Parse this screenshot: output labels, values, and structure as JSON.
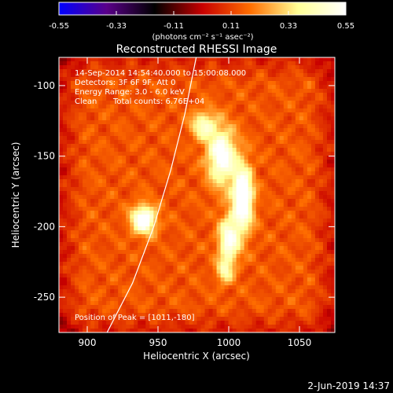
{
  "chart_data": {
    "type": "heatmap",
    "title": "Reconstructed RHESSI Image",
    "xlabel": "Heliocentric X (arcsec)",
    "ylabel": "Heliocentric Y (arcsec)",
    "xlim": [
      880,
      1075
    ],
    "ylim": [
      -275,
      -80
    ],
    "x_ticks": [
      900,
      950,
      1000,
      1050
    ],
    "y_ticks": [
      -250,
      -200,
      -150,
      -100
    ],
    "colorbar": {
      "label": "(photons cm⁻² s⁻¹ asec⁻²)",
      "range": [
        -0.55,
        0.55
      ],
      "ticks": [
        -0.55,
        -0.33,
        -0.11,
        0.11,
        0.33,
        0.55
      ],
      "colormap": [
        "#0000ff",
        "#5a0089",
        "#000000",
        "#c80000",
        "#ff6e00",
        "#ffff96",
        "#ffffff"
      ]
    },
    "annotations": [
      "14-Sep-2014 14:54:40.000 to 15:00:08.000",
      "Detectors: 3F 6F 9F, Att 0",
      "Energy Range: 3.0 - 6.0 keV",
      "Clean",
      "Total counts: 6.76E+04"
    ],
    "peak_label": "Position of Peak = [1011,-180]",
    "sources": [
      {
        "x": 940,
        "y": -195,
        "sx": 6,
        "sy": 7,
        "amp": 0.5
      },
      {
        "x": 1010,
        "y": -180,
        "sx": 5,
        "sy": 16,
        "amp": 0.55
      },
      {
        "x": 995,
        "y": -150,
        "sx": 7,
        "sy": 14,
        "amp": 0.45
      },
      {
        "x": 982,
        "y": -128,
        "sx": 6,
        "sy": 7,
        "amp": 0.3
      },
      {
        "x": 1000,
        "y": -210,
        "sx": 5,
        "sy": 12,
        "amp": 0.4
      },
      {
        "x": 997,
        "y": -232,
        "sx": 4,
        "sy": 6,
        "amp": 0.22
      }
    ],
    "limb": [
      [
        914,
        -275
      ],
      [
        932,
        -240
      ],
      [
        947,
        -200
      ],
      [
        959,
        -160
      ],
      [
        969,
        -120
      ],
      [
        977,
        -80
      ]
    ]
  },
  "footer": {
    "timestamp": "2-Jun-2019 14:37"
  }
}
